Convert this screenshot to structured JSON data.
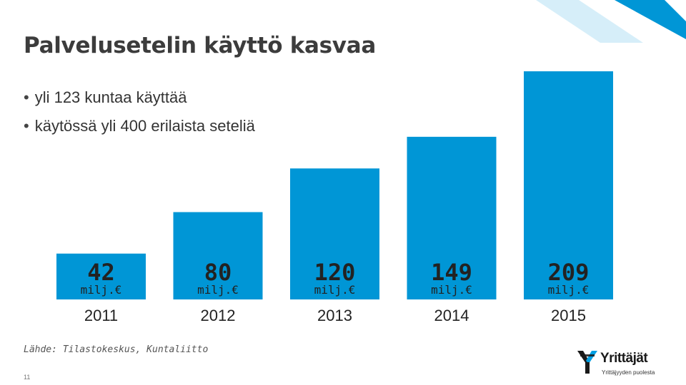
{
  "slide": {
    "title": "Palvelusetelin käyttö kasvaa",
    "bullets": [
      "yli 123 kuntaa käyttää",
      "käytössä yli 400 erilaista seteliä"
    ],
    "source": "Lähde: Tilastokeskus, Kuntaliitto",
    "page_number": "11"
  },
  "logo": {
    "name": "Yrittäjät",
    "tagline": "Yrittäjyyden puolesta"
  },
  "colors": {
    "bar": "#0096d6",
    "accent": "#009fe3"
  },
  "chart_data": {
    "type": "bar",
    "title": "",
    "categories": [
      "2011",
      "2012",
      "2013",
      "2014",
      "2015"
    ],
    "values": [
      42,
      80,
      120,
      149,
      209
    ],
    "value_labels": [
      "42",
      "80",
      "120",
      "149",
      "209"
    ],
    "unit": "milj.€",
    "xlabel": "",
    "ylabel": "",
    "ylim": [
      0,
      209
    ],
    "grid": false,
    "legend": "none"
  }
}
